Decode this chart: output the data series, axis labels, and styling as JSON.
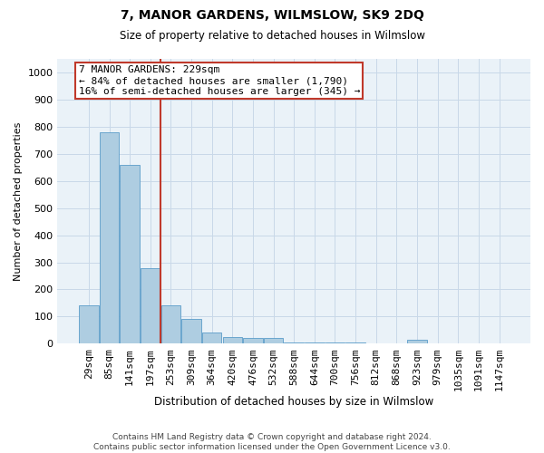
{
  "title": "7, MANOR GARDENS, WILMSLOW, SK9 2DQ",
  "subtitle": "Size of property relative to detached houses in Wilmslow",
  "xlabel": "Distribution of detached houses by size in Wilmslow",
  "ylabel": "Number of detached properties",
  "bar_labels": [
    "29sqm",
    "85sqm",
    "141sqm",
    "197sqm",
    "253sqm",
    "309sqm",
    "364sqm",
    "420sqm",
    "476sqm",
    "532sqm",
    "588sqm",
    "644sqm",
    "700sqm",
    "756sqm",
    "812sqm",
    "868sqm",
    "923sqm",
    "979sqm",
    "1035sqm",
    "1091sqm",
    "1147sqm"
  ],
  "bar_values": [
    140,
    780,
    660,
    280,
    140,
    90,
    40,
    25,
    20,
    20,
    5,
    5,
    5,
    5,
    0,
    0,
    15,
    0,
    0,
    0,
    0
  ],
  "bar_color": "#aecde1",
  "bar_edgecolor": "#5b9dc9",
  "vline_color": "#c0392b",
  "annotation_text": "7 MANOR GARDENS: 229sqm\n← 84% of detached houses are smaller (1,790)\n16% of semi-detached houses are larger (345) →",
  "annotation_box_color": "#c0392b",
  "ylim": [
    0,
    1050
  ],
  "yticks": [
    0,
    100,
    200,
    300,
    400,
    500,
    600,
    700,
    800,
    900,
    1000
  ],
  "grid_color": "#c8d8e8",
  "background_color": "#eaf2f8",
  "footer": "Contains HM Land Registry data © Crown copyright and database right 2024.\nContains public sector information licensed under the Open Government Licence v3.0.",
  "title_fontsize": 10,
  "subtitle_fontsize": 8.5,
  "xlabel_fontsize": 8.5,
  "ylabel_fontsize": 8,
  "tick_fontsize": 8,
  "annot_fontsize": 8
}
